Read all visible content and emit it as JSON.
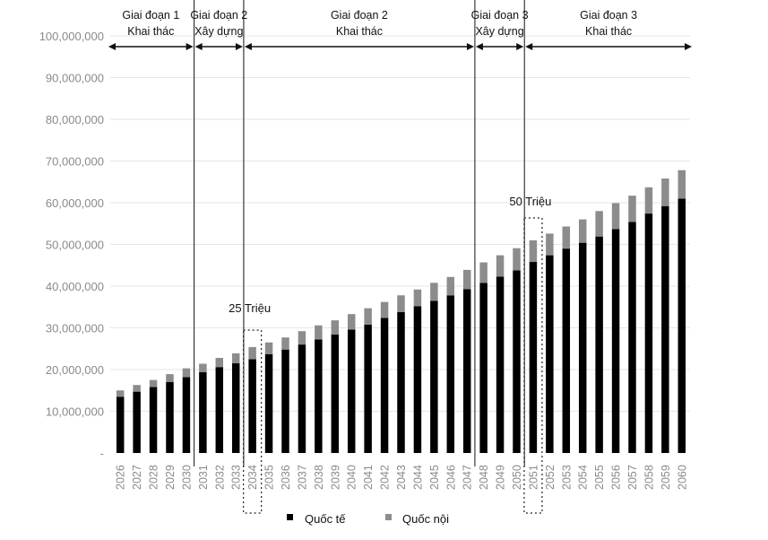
{
  "chart_data": {
    "type": "bar",
    "stacked": true,
    "categories": [
      "2026",
      "2027",
      "2028",
      "2029",
      "2030",
      "2031",
      "2032",
      "2033",
      "2034",
      "2035",
      "2036",
      "2037",
      "2038",
      "2039",
      "2040",
      "2041",
      "2042",
      "2043",
      "2044",
      "2045",
      "2046",
      "2047",
      "2048",
      "2049",
      "2050",
      "2051",
      "2052",
      "2053",
      "2054",
      "2055",
      "2056",
      "2057",
      "2058",
      "2059",
      "2060"
    ],
    "series": [
      {
        "name": "Quốc tế",
        "color": "#000000",
        "values": [
          13500000,
          14700000,
          15800000,
          17000000,
          18200000,
          19400000,
          20600000,
          21500000,
          22500000,
          23700000,
          24800000,
          26000000,
          27200000,
          28400000,
          29600000,
          30800000,
          32400000,
          33800000,
          35200000,
          36500000,
          37800000,
          39300000,
          40800000,
          42300000,
          43800000,
          45800000,
          47400000,
          49000000,
          50400000,
          51900000,
          53700000,
          55400000,
          57400000,
          59200000,
          61000000
        ]
      },
      {
        "name": "Quốc nội",
        "color": "#8c8c8c",
        "values": [
          1500000,
          1600000,
          1700000,
          1900000,
          2100000,
          2000000,
          2200000,
          2400000,
          2900000,
          2800000,
          2900000,
          3200000,
          3400000,
          3400000,
          3700000,
          3900000,
          3800000,
          4000000,
          4000000,
          4300000,
          4400000,
          4600000,
          4900000,
          5100000,
          5300000,
          5200000,
          5200000,
          5300000,
          5600000,
          6100000,
          6200000,
          6300000,
          6300000,
          6600000,
          6800000
        ]
      }
    ],
    "ylim": [
      0,
      100000000
    ],
    "y_ticks": [
      "-",
      "10,000,000",
      "20,000,000",
      "30,000,000",
      "40,000,000",
      "50,000,000",
      "60,000,000",
      "70,000,000",
      "80,000,000",
      "90,000,000",
      "100,000,000"
    ],
    "grid": "horizontal",
    "legend": "bottom-center",
    "phases": [
      {
        "title": "Giai đoạn 1",
        "subtitle": "Khai thác",
        "start": "2026",
        "end": "2031"
      },
      {
        "title": "Giai đoạn 2",
        "subtitle": "Xây dựng",
        "start": "2031",
        "end": "2034"
      },
      {
        "title": "Giai đoạn 2",
        "subtitle": "Khai thác",
        "start": "2034",
        "end": "2048"
      },
      {
        "title": "Giai đoạn 3",
        "subtitle": "Xây dựng",
        "start": "2048",
        "end": "2051"
      },
      {
        "title": "Giai đoạn 3",
        "subtitle": "Khai thác",
        "start": "2051",
        "end": "2060"
      }
    ],
    "annotations": [
      {
        "label": "25 Triệu",
        "category": "2034"
      },
      {
        "label": "50 Triệu",
        "category": "2051"
      }
    ]
  }
}
